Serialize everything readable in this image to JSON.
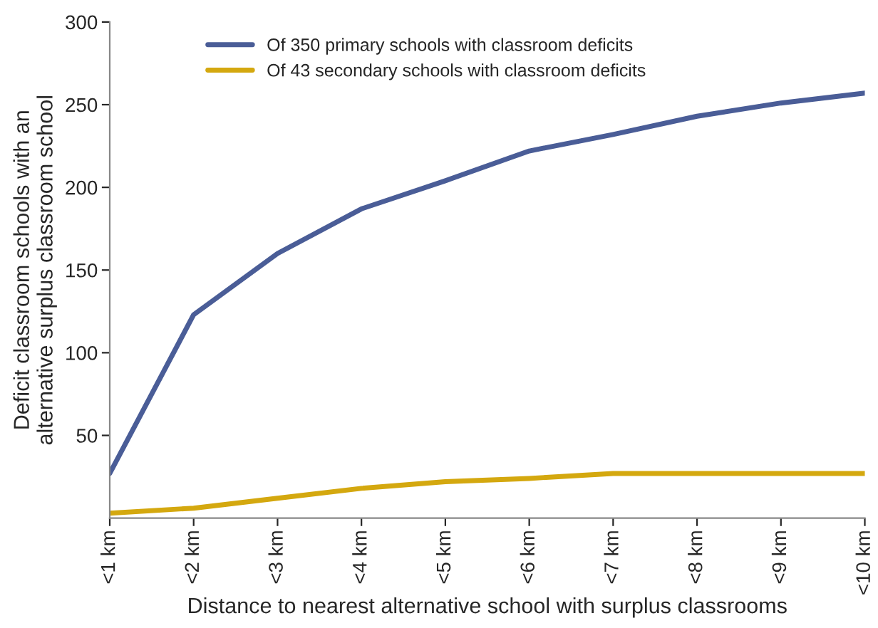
{
  "chart_data": {
    "type": "line",
    "xlabel": "Distance to nearest alternative school with surplus classrooms",
    "ylabel": "Deficit classroom schools with an\nalternative surplus classroom school",
    "categories": [
      "<1 km",
      "<2 km",
      "<3 km",
      "<4 km",
      "<5 km",
      "<6 km",
      "<7 km",
      "<8 km",
      "<9 km",
      "<10 km"
    ],
    "series": [
      {
        "name": "Of 350 primary schools with classroom deficits",
        "color": "#4a5d97",
        "values": [
          27,
          123,
          160,
          187,
          204,
          222,
          232,
          243,
          251,
          257
        ]
      },
      {
        "name": "Of 43 secondary schools with classroom deficits",
        "color": "#d4a80f",
        "values": [
          3,
          6,
          12,
          18,
          22,
          24,
          27,
          27,
          27,
          27
        ]
      }
    ],
    "ylim": [
      0,
      300
    ],
    "yticks": [
      50,
      100,
      150,
      200,
      250,
      300
    ],
    "grid": false,
    "legend": "top",
    "marker": "none",
    "line_style": "solid"
  }
}
